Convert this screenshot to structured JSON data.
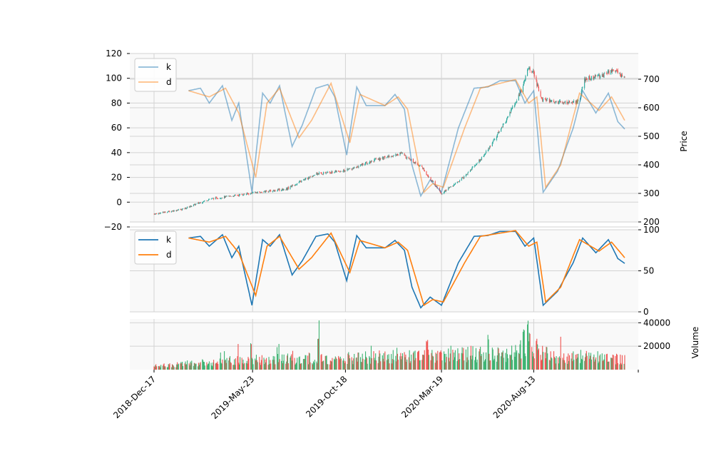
{
  "colors": {
    "k_line": "#1f77b4",
    "d_line": "#ff7f0e",
    "up_candle": "#26a69a",
    "up_volume": "#3cb371",
    "down": "#ef5350",
    "panel_bg": "#f9f9f9",
    "grid": "#d3d3d3"
  },
  "chart_data": [
    {
      "type": "candlestick_with_lines",
      "panel": "main",
      "ylabel": "Price",
      "left_axis_ticks": [
        "-20",
        "0",
        "20",
        "40",
        "60",
        "80",
        "100",
        "120"
      ],
      "right_axis_ticks": [
        "200",
        "300",
        "400",
        "500",
        "600",
        "700"
      ],
      "left_ylim": [
        -20,
        120
      ],
      "right_ylim": [
        190,
        780
      ],
      "legend": {
        "position": "top-left",
        "entries": [
          "k",
          "d"
        ]
      },
      "price_anchors": [
        {
          "date": "2018-12-17",
          "price": 228
        },
        {
          "date": "2019-02-01",
          "price": 245
        },
        {
          "date": "2019-03-15",
          "price": 280
        },
        {
          "date": "2019-05-20",
          "price": 300
        },
        {
          "date": "2019-07-15",
          "price": 315
        },
        {
          "date": "2019-09-01",
          "price": 368
        },
        {
          "date": "2019-10-18",
          "price": 380
        },
        {
          "date": "2019-12-01",
          "price": 415
        },
        {
          "date": "2020-01-15",
          "price": 440
        },
        {
          "date": "2020-02-15",
          "price": 395
        },
        {
          "date": "2020-03-19",
          "price": 300
        },
        {
          "date": "2020-04-20",
          "price": 350
        },
        {
          "date": "2020-05-25",
          "price": 430
        },
        {
          "date": "2020-07-01",
          "price": 560
        },
        {
          "date": "2020-07-25",
          "price": 665
        },
        {
          "date": "2020-08-05",
          "price": 740
        },
        {
          "date": "2020-08-13",
          "price": 720
        },
        {
          "date": "2020-08-25",
          "price": 630
        },
        {
          "date": "2020-09-20",
          "price": 620
        },
        {
          "date": "2020-10-25",
          "price": 620
        },
        {
          "date": "2020-11-01",
          "price": 700
        },
        {
          "date": "2020-11-25",
          "price": 710
        },
        {
          "date": "2020-12-20",
          "price": 730
        },
        {
          "date": "2021-01-05",
          "price": 700
        }
      ],
      "k_anchors": [
        {
          "date": "2019-02-10",
          "value": 90
        },
        {
          "date": "2019-03-01",
          "value": 92
        },
        {
          "date": "2019-03-15",
          "value": 80
        },
        {
          "date": "2019-04-05",
          "value": 94
        },
        {
          "date": "2019-04-20",
          "value": 66
        },
        {
          "date": "2019-05-01",
          "value": 80
        },
        {
          "date": "2019-05-22",
          "value": 8
        },
        {
          "date": "2019-06-08",
          "value": 88
        },
        {
          "date": "2019-06-20",
          "value": 80
        },
        {
          "date": "2019-07-05",
          "value": 94
        },
        {
          "date": "2019-07-25",
          "value": 45
        },
        {
          "date": "2019-08-10",
          "value": 62
        },
        {
          "date": "2019-09-01",
          "value": 92
        },
        {
          "date": "2019-09-20",
          "value": 95
        },
        {
          "date": "2019-10-01",
          "value": 85
        },
        {
          "date": "2019-10-20",
          "value": 38
        },
        {
          "date": "2019-11-05",
          "value": 93
        },
        {
          "date": "2019-11-20",
          "value": 78
        },
        {
          "date": "2019-12-20",
          "value": 78
        },
        {
          "date": "2020-01-05",
          "value": 87
        },
        {
          "date": "2020-01-20",
          "value": 75
        },
        {
          "date": "2020-02-01",
          "value": 30
        },
        {
          "date": "2020-02-15",
          "value": 5
        },
        {
          "date": "2020-03-01",
          "value": 18
        },
        {
          "date": "2020-03-19",
          "value": 8
        },
        {
          "date": "2020-04-15",
          "value": 60
        },
        {
          "date": "2020-05-10",
          "value": 92
        },
        {
          "date": "2020-06-01",
          "value": 93
        },
        {
          "date": "2020-06-20",
          "value": 98
        },
        {
          "date": "2020-07-15",
          "value": 98
        },
        {
          "date": "2020-07-30",
          "value": 80
        },
        {
          "date": "2020-08-13",
          "value": 90
        },
        {
          "date": "2020-08-28",
          "value": 8
        },
        {
          "date": "2020-09-20",
          "value": 25
        },
        {
          "date": "2020-10-15",
          "value": 60
        },
        {
          "date": "2020-10-30",
          "value": 90
        },
        {
          "date": "2020-11-20",
          "value": 72
        },
        {
          "date": "2020-12-10",
          "value": 88
        },
        {
          "date": "2020-12-25",
          "value": 65
        },
        {
          "date": "2021-01-05",
          "value": 59
        }
      ],
      "d_anchors": [
        {
          "date": "2019-02-10",
          "value": 90
        },
        {
          "date": "2019-03-15",
          "value": 85
        },
        {
          "date": "2019-04-10",
          "value": 92
        },
        {
          "date": "2019-05-01",
          "value": 72
        },
        {
          "date": "2019-05-28",
          "value": 20
        },
        {
          "date": "2019-06-15",
          "value": 80
        },
        {
          "date": "2019-07-05",
          "value": 92
        },
        {
          "date": "2019-08-05",
          "value": 52
        },
        {
          "date": "2019-08-25",
          "value": 66
        },
        {
          "date": "2019-09-25",
          "value": 96
        },
        {
          "date": "2019-10-25",
          "value": 48
        },
        {
          "date": "2019-11-10",
          "value": 87
        },
        {
          "date": "2019-12-20",
          "value": 78
        },
        {
          "date": "2020-01-10",
          "value": 85
        },
        {
          "date": "2020-01-25",
          "value": 75
        },
        {
          "date": "2020-02-20",
          "value": 8
        },
        {
          "date": "2020-03-05",
          "value": 15
        },
        {
          "date": "2020-03-22",
          "value": 12
        },
        {
          "date": "2020-04-25",
          "value": 60
        },
        {
          "date": "2020-05-20",
          "value": 92
        },
        {
          "date": "2020-07-15",
          "value": 99
        },
        {
          "date": "2020-08-05",
          "value": 80
        },
        {
          "date": "2020-08-18",
          "value": 85
        },
        {
          "date": "2020-09-01",
          "value": 12
        },
        {
          "date": "2020-09-25",
          "value": 30
        },
        {
          "date": "2020-10-25",
          "value": 88
        },
        {
          "date": "2020-11-25",
          "value": 74
        },
        {
          "date": "2020-12-15",
          "value": 85
        },
        {
          "date": "2021-01-05",
          "value": 66
        }
      ]
    },
    {
      "type": "line",
      "panel": "stochastic",
      "right_axis_ticks": [
        "0",
        "50",
        "100"
      ],
      "ylim": [
        0,
        100
      ],
      "legend": {
        "position": "top-left",
        "entries": [
          "k",
          "d"
        ]
      }
    },
    {
      "type": "bar",
      "panel": "volume",
      "ylabel": "Volume",
      "right_axis_ticks": [
        "20000",
        "40000"
      ],
      "ylim": [
        0,
        42000
      ],
      "volume_anchors": [
        {
          "date": "2018-12-17",
          "value": 3000
        },
        {
          "date": "2019-05-01",
          "value": 8000
        },
        {
          "date": "2019-07-20",
          "value": 9000
        },
        {
          "date": "2019-10-01",
          "value": 10000
        },
        {
          "date": "2020-01-15",
          "value": 11000
        },
        {
          "date": "2020-04-15",
          "value": 14000
        },
        {
          "date": "2020-07-01",
          "value": 12000
        },
        {
          "date": "2020-08-01",
          "value": 22000
        },
        {
          "date": "2020-09-15",
          "value": 10000
        },
        {
          "date": "2020-11-15",
          "value": 11000
        },
        {
          "date": "2021-01-05",
          "value": 8000
        }
      ],
      "volume_spikes": [
        {
          "date": "2020-08-03",
          "value": 42000
        },
        {
          "date": "2020-07-28",
          "value": 35000
        },
        {
          "date": "2020-08-07",
          "value": 34000
        },
        {
          "date": "2019-09-05",
          "value": 30000
        },
        {
          "date": "2020-02-25",
          "value": 26000
        },
        {
          "date": "2020-06-01",
          "value": 30000
        },
        {
          "date": "2019-05-20",
          "value": 25000
        }
      ]
    }
  ],
  "x_axis": {
    "tick_labels": [
      "2018-Dec-17",
      "2019-May-23",
      "2019-Oct-18",
      "2020-Mar-19",
      "2020-Aug-13"
    ],
    "tick_dates": [
      "2018-12-17",
      "2019-05-23",
      "2019-10-18",
      "2020-03-19",
      "2020-08-13"
    ],
    "range": [
      "2018-12-17",
      "2021-01-05"
    ]
  }
}
